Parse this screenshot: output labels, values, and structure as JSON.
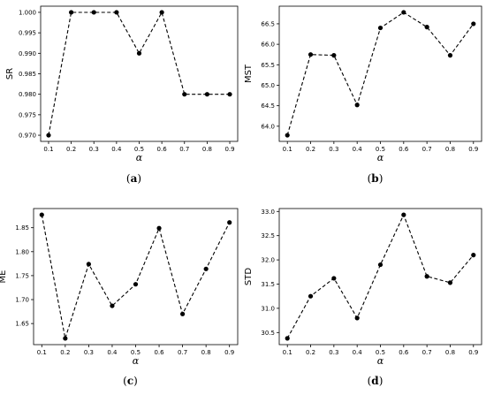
{
  "chart_data": [
    {
      "type": "line",
      "caption": "a",
      "ylabel": "SR",
      "xlabel": "α",
      "x": [
        0.1,
        0.2,
        0.3,
        0.4,
        0.5,
        0.6,
        0.7,
        0.8,
        0.9
      ],
      "values": [
        0.97,
        1.0,
        1.0,
        1.0,
        0.99,
        1.0,
        0.98,
        0.98,
        0.98
      ],
      "xlim": [
        0.065,
        0.935
      ],
      "ylim": [
        0.9685,
        1.0015
      ],
      "xticks": [
        0.1,
        0.2,
        0.3,
        0.4,
        0.5,
        0.6,
        0.7,
        0.8,
        0.9
      ],
      "xtick_labels": [
        "0.1",
        "0.2",
        "0.3",
        "0.4",
        "0.5",
        "0.6",
        "0.7",
        "0.8",
        "0.9"
      ],
      "yticks": [
        0.97,
        0.975,
        0.98,
        0.985,
        0.99,
        0.995,
        1.0
      ],
      "ytick_labels": [
        "0.970",
        "0.975",
        "0.980",
        "0.985",
        "0.990",
        "0.995",
        "1.000"
      ],
      "grid": false,
      "line_style": "dashed",
      "marker": "circle",
      "color": "#000000"
    },
    {
      "type": "line",
      "caption": "b",
      "ylabel": "MST",
      "xlabel": "α",
      "x": [
        0.1,
        0.2,
        0.3,
        0.4,
        0.5,
        0.6,
        0.7,
        0.8,
        0.9
      ],
      "values": [
        63.78,
        65.75,
        65.73,
        64.52,
        66.4,
        66.78,
        66.42,
        65.73,
        66.5
      ],
      "xlim": [
        0.065,
        0.935
      ],
      "ylim": [
        63.63,
        66.93
      ],
      "xticks": [
        0.1,
        0.2,
        0.3,
        0.4,
        0.5,
        0.6,
        0.7,
        0.8,
        0.9
      ],
      "xtick_labels": [
        "0.1",
        "0.2",
        "0.3",
        "0.4",
        "0.5",
        "0.6",
        "0.7",
        "0.8",
        "0.9"
      ],
      "yticks": [
        64.0,
        64.5,
        65.0,
        65.5,
        66.0,
        66.5
      ],
      "ytick_labels": [
        "64.0",
        "64.5",
        "65.0",
        "65.5",
        "66.0",
        "66.5"
      ],
      "grid": false,
      "line_style": "dashed",
      "marker": "circle",
      "color": "#000000"
    },
    {
      "type": "line",
      "caption": "c",
      "ylabel": "ME",
      "xlabel": "α",
      "x": [
        0.1,
        0.2,
        0.3,
        0.4,
        0.5,
        0.6,
        0.7,
        0.8,
        0.9
      ],
      "values": [
        1.877,
        1.619,
        1.774,
        1.687,
        1.732,
        1.849,
        1.67,
        1.764,
        1.861
      ],
      "xlim": [
        0.065,
        0.935
      ],
      "ylim": [
        1.606,
        1.89
      ],
      "xticks": [
        0.1,
        0.2,
        0.3,
        0.4,
        0.5,
        0.6,
        0.7,
        0.8,
        0.9
      ],
      "xtick_labels": [
        "0.1",
        "0.2",
        "0.3",
        "0.4",
        "0.5",
        "0.6",
        "0.7",
        "0.8",
        "0.9"
      ],
      "yticks": [
        1.65,
        1.7,
        1.75,
        1.8,
        1.85
      ],
      "ytick_labels": [
        "1.65",
        "1.70",
        "1.75",
        "1.80",
        "1.85"
      ],
      "grid": false,
      "line_style": "dashed",
      "marker": "circle",
      "color": "#000000"
    },
    {
      "type": "line",
      "caption": "d",
      "ylabel": "STD",
      "xlabel": "α",
      "x": [
        0.1,
        0.2,
        0.3,
        0.4,
        0.5,
        0.6,
        0.7,
        0.8,
        0.9
      ],
      "values": [
        30.38,
        31.25,
        31.62,
        30.8,
        31.9,
        32.93,
        31.66,
        31.53,
        32.1
      ],
      "xlim": [
        0.065,
        0.935
      ],
      "ylim": [
        30.25,
        33.06
      ],
      "xticks": [
        0.1,
        0.2,
        0.3,
        0.4,
        0.5,
        0.6,
        0.7,
        0.8,
        0.9
      ],
      "xtick_labels": [
        "0.1",
        "0.2",
        "0.3",
        "0.4",
        "0.5",
        "0.6",
        "0.7",
        "0.8",
        "0.9"
      ],
      "yticks": [
        30.5,
        31.0,
        31.5,
        32.0,
        32.5,
        33.0
      ],
      "ytick_labels": [
        "30.5",
        "31.0",
        "31.5",
        "32.0",
        "32.5",
        "33.0"
      ],
      "grid": false,
      "line_style": "dashed",
      "marker": "circle",
      "color": "#000000"
    }
  ]
}
